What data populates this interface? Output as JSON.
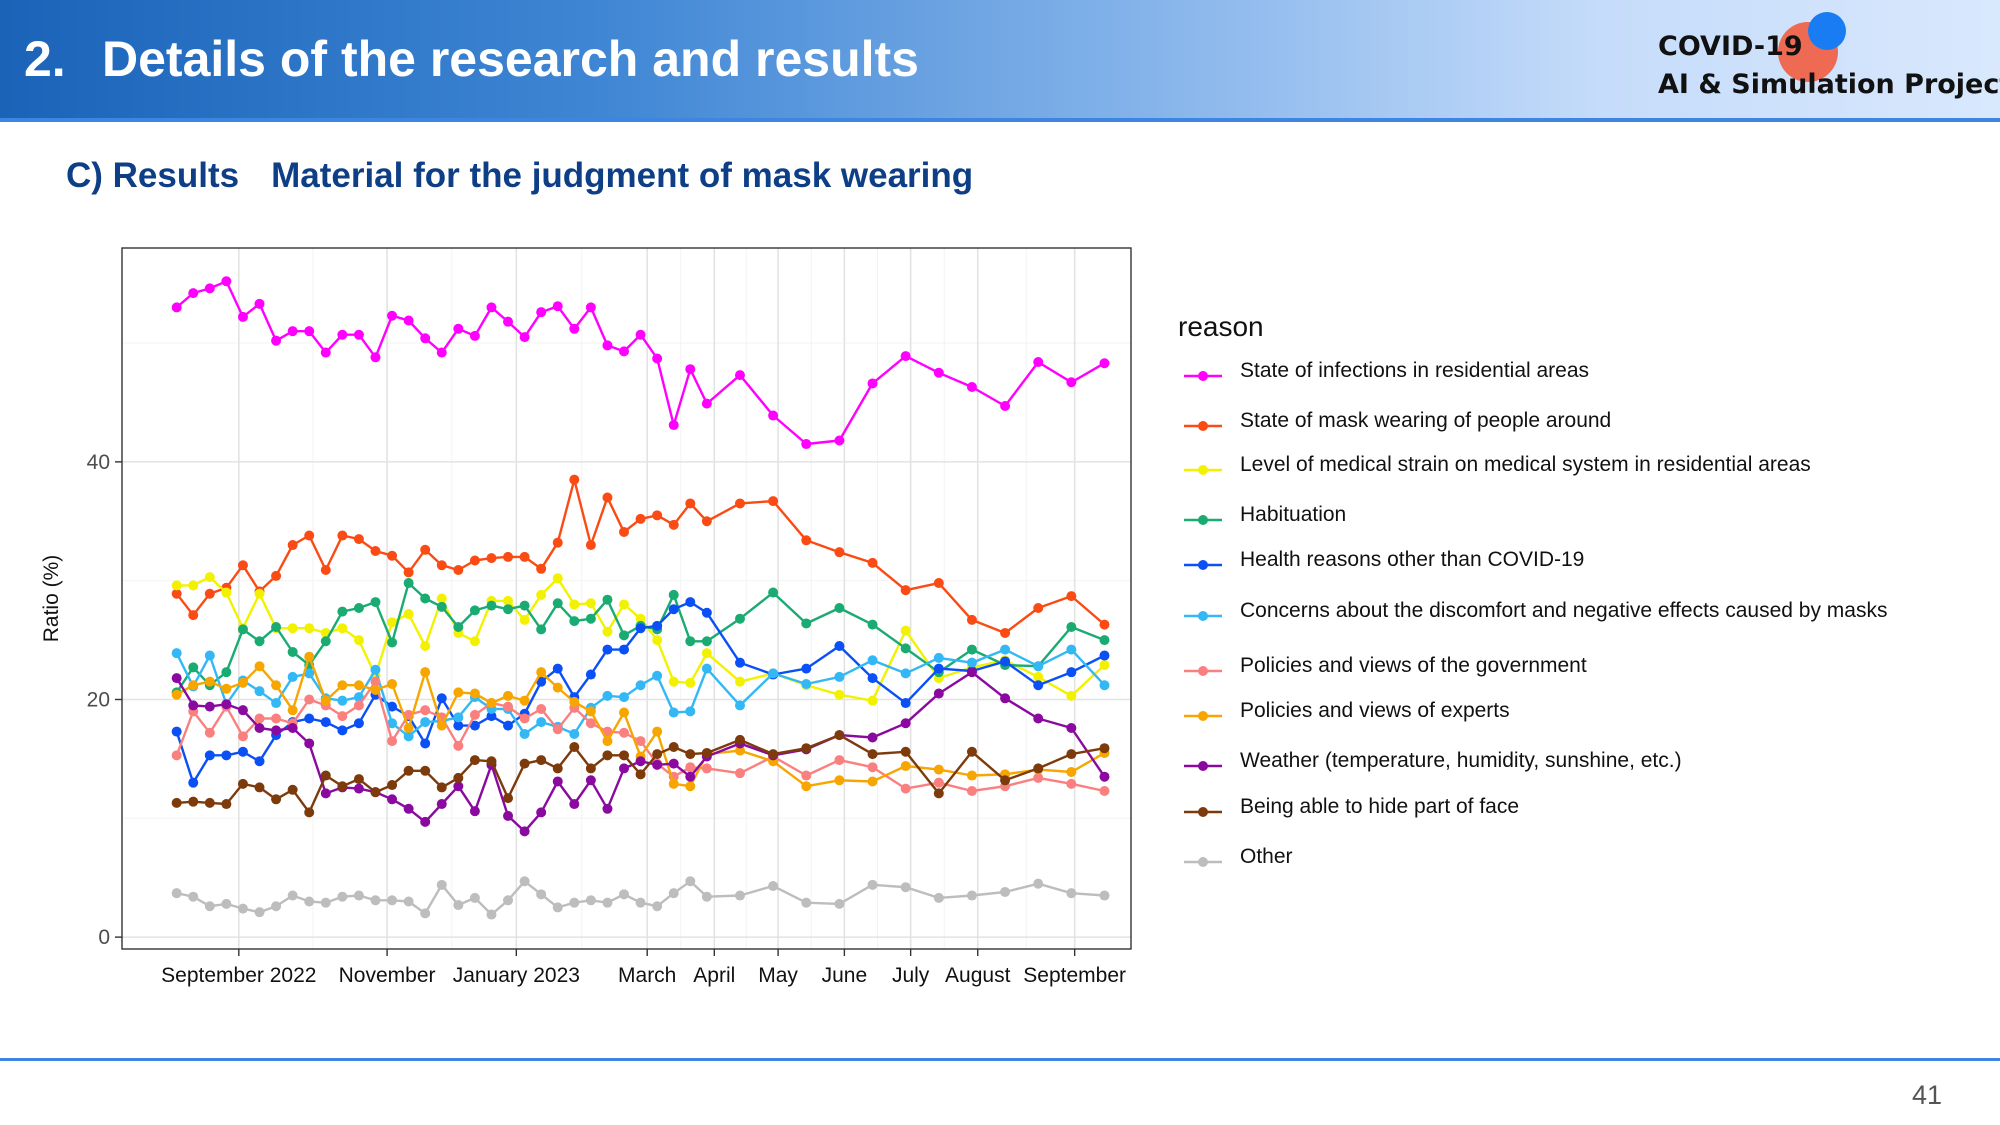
{
  "header": {
    "number": "2.",
    "title": "Details of the research and results",
    "logo_line1": "COVID-19",
    "logo_line2": "AI & Simulation Project"
  },
  "subtitle": {
    "label": "C)  Results",
    "text": "Material for the judgment of mask wearing"
  },
  "page_number": "41",
  "colors": {
    "header_start": "#1a63b8",
    "header_end": "#d9e8fd",
    "accent_rule": "#3d85e0",
    "subtitle": "#0e3f86",
    "logo_red": "#ef6a52",
    "logo_blue": "#1a7cf2"
  },
  "chart_data": {
    "type": "line",
    "ylabel": "Ratio (%)",
    "ylim": [
      -1,
      58
    ],
    "y_ticks": [
      0,
      20,
      40
    ],
    "grid": true,
    "legend_title": "reason",
    "legend_position": "right",
    "x_ticks": [
      {
        "label": "September 2022",
        "x": 3.75
      },
      {
        "label": "November",
        "x": 12.7
      },
      {
        "label": "January 2023",
        "x": 20.5
      },
      {
        "label": "March",
        "x": 28.4
      },
      {
        "label": "April",
        "x": 32.45
      },
      {
        "label": "May",
        "x": 36.3
      },
      {
        "label": "June",
        "x": 40.3
      },
      {
        "label": "July",
        "x": 44.3
      },
      {
        "label": "August",
        "x": 48.35
      },
      {
        "label": "September",
        "x": 54.2
      }
    ],
    "x": [
      0,
      1,
      2,
      3,
      4,
      5,
      6,
      7,
      8,
      9,
      10,
      11,
      12,
      13,
      14,
      15,
      16,
      17,
      18,
      19,
      20,
      21,
      22,
      23,
      24,
      25,
      26,
      27,
      28,
      29,
      30,
      31,
      32,
      34,
      36,
      38,
      40,
      42,
      44,
      46,
      48,
      50,
      52,
      54,
      56
    ],
    "series": [
      {
        "name": "State of infections in residential areas",
        "color": "#ff00ff",
        "values": [
          53.0,
          54.2,
          54.6,
          55.2,
          52.2,
          53.3,
          50.2,
          51.0,
          51.0,
          49.2,
          50.7,
          50.7,
          48.8,
          52.3,
          51.9,
          50.4,
          49.2,
          51.2,
          50.6,
          53.0,
          51.8,
          50.5,
          52.6,
          53.1,
          51.2,
          53.0,
          49.8,
          49.3,
          50.7,
          48.7,
          43.1,
          47.8,
          44.9,
          47.3,
          43.9,
          41.5,
          41.8,
          46.6,
          48.9,
          47.5,
          46.3,
          44.7,
          48.4,
          46.7,
          48.3
        ]
      },
      {
        "name": "State of mask wearing of people around",
        "color": "#fa4b14",
        "values": [
          28.9,
          27.1,
          28.9,
          29.4,
          31.3,
          29.1,
          30.4,
          33.0,
          33.8,
          30.9,
          33.8,
          33.5,
          32.5,
          32.1,
          30.7,
          32.6,
          31.3,
          30.9,
          31.7,
          31.9,
          32.0,
          32.0,
          31.0,
          33.2,
          38.5,
          33.0,
          37.0,
          34.1,
          35.2,
          35.5,
          34.7,
          36.5,
          35.0,
          36.5,
          36.7,
          33.4,
          32.4,
          31.5,
          29.2,
          29.8,
          26.7,
          25.6,
          27.7,
          28.7,
          26.3
        ]
      },
      {
        "name": "Level of medical strain on medical system in residential areas",
        "color": "#f2f200",
        "values": [
          29.6,
          29.6,
          30.3,
          29.0,
          26.0,
          28.9,
          26.0,
          26.0,
          26.0,
          25.6,
          26.0,
          25.0,
          22.0,
          26.5,
          27.2,
          24.5,
          28.5,
          25.6,
          24.9,
          28.3,
          28.3,
          26.7,
          28.8,
          30.2,
          28.0,
          28.1,
          25.7,
          28.0,
          26.8,
          25.0,
          21.5,
          21.4,
          23.9,
          21.5,
          22.2,
          21.2,
          20.4,
          19.9,
          25.8,
          21.8,
          22.7,
          23.3,
          21.9,
          20.3,
          22.9
        ]
      },
      {
        "name": "Habituation",
        "color": "#1aab73",
        "values": [
          20.6,
          22.7,
          21.2,
          22.3,
          25.9,
          24.9,
          26.1,
          24.0,
          22.9,
          24.9,
          27.4,
          27.7,
          28.2,
          24.8,
          29.8,
          28.5,
          27.8,
          26.1,
          27.5,
          27.9,
          27.6,
          27.9,
          25.9,
          28.1,
          26.6,
          26.8,
          28.4,
          25.4,
          26.2,
          25.9,
          28.8,
          24.9,
          24.9,
          26.8,
          29.0,
          26.4,
          27.7,
          26.3,
          24.3,
          22.3,
          24.2,
          22.9,
          22.8,
          26.1,
          25.0
        ]
      },
      {
        "name": "Health reasons other than COVID-19",
        "color": "#0a50f5",
        "values": [
          17.3,
          13.0,
          15.3,
          15.3,
          15.6,
          14.8,
          17.0,
          18.1,
          18.4,
          18.1,
          17.4,
          18.0,
          20.4,
          19.4,
          18.6,
          16.3,
          20.1,
          17.8,
          17.8,
          18.6,
          17.8,
          18.8,
          21.5,
          22.6,
          20.2,
          22.1,
          24.2,
          24.2,
          26.0,
          26.2,
          27.6,
          28.2,
          27.3,
          23.1,
          22.1,
          22.6,
          24.5,
          21.8,
          19.7,
          22.6,
          22.4,
          23.2,
          21.2,
          22.3,
          23.7
        ]
      },
      {
        "name": "Concerns about the discomfort and negative effects caused by masks",
        "color": "#33b8f5",
        "values": [
          23.9,
          21.1,
          23.7,
          19.6,
          21.6,
          20.7,
          19.7,
          21.9,
          22.2,
          20.1,
          19.9,
          20.2,
          22.5,
          18.0,
          16.9,
          18.1,
          18.2,
          18.5,
          20.2,
          19.2,
          19.2,
          17.1,
          18.1,
          17.7,
          17.1,
          19.3,
          20.3,
          20.2,
          21.2,
          22.0,
          18.9,
          19.0,
          22.6,
          19.5,
          22.2,
          21.3,
          21.9,
          23.3,
          22.2,
          23.5,
          23.1,
          24.2,
          22.8,
          24.2,
          21.2
        ]
      },
      {
        "name": "Policies and views of the government",
        "color": "#fa8080",
        "values": [
          15.3,
          19.0,
          17.2,
          19.4,
          16.9,
          18.4,
          18.4,
          18.0,
          20.0,
          19.5,
          18.6,
          19.5,
          21.5,
          16.5,
          18.7,
          19.1,
          18.5,
          16.1,
          18.7,
          19.7,
          19.4,
          18.4,
          19.2,
          17.5,
          19.3,
          18.0,
          17.3,
          17.2,
          16.5,
          14.6,
          13.5,
          14.3,
          14.2,
          13.8,
          15.2,
          13.6,
          14.9,
          14.3,
          12.5,
          13.0,
          12.3,
          12.7,
          13.4,
          12.9,
          12.3
        ]
      },
      {
        "name": "Policies and views of experts",
        "color": "#f7a600",
        "values": [
          20.4,
          21.2,
          21.5,
          20.9,
          21.4,
          22.8,
          21.2,
          19.1,
          23.6,
          19.9,
          21.2,
          21.2,
          20.8,
          21.3,
          17.6,
          22.3,
          17.8,
          20.6,
          20.5,
          19.7,
          20.3,
          19.9,
          22.3,
          21.0,
          19.8,
          19.0,
          16.5,
          18.9,
          15.2,
          17.3,
          12.9,
          12.7,
          15.4,
          15.7,
          14.8,
          12.7,
          13.2,
          13.1,
          14.4,
          14.1,
          13.6,
          13.7,
          14.1,
          13.9,
          15.5
        ]
      },
      {
        "name": "Weather (temperature, humidity, sunshine, etc.)",
        "color": "#8a0aa0",
        "values": [
          21.8,
          19.5,
          19.4,
          19.6,
          19.1,
          17.6,
          17.4,
          17.6,
          16.3,
          12.1,
          12.6,
          12.5,
          12.2,
          11.6,
          10.8,
          9.7,
          11.2,
          12.7,
          10.6,
          14.5,
          10.2,
          8.9,
          10.5,
          13.1,
          11.2,
          13.2,
          10.8,
          14.2,
          14.8,
          14.5,
          14.6,
          13.5,
          15.2,
          16.3,
          15.3,
          15.8,
          17.0,
          16.8,
          18.0,
          20.5,
          22.3,
          20.1,
          18.4,
          17.6,
          13.5
        ]
      },
      {
        "name": "Being able to hide part of face",
        "color": "#7d3a0a",
        "values": [
          11.3,
          11.4,
          11.3,
          11.2,
          12.9,
          12.6,
          11.6,
          12.4,
          10.5,
          13.6,
          12.7,
          13.3,
          12.2,
          12.8,
          14.0,
          14.0,
          12.6,
          13.4,
          14.9,
          14.8,
          11.7,
          14.6,
          14.9,
          14.2,
          16.0,
          14.2,
          15.3,
          15.3,
          13.7,
          15.4,
          16.0,
          15.4,
          15.5,
          16.6,
          15.4,
          15.9,
          17.0,
          15.4,
          15.6,
          12.1,
          15.6,
          13.2,
          14.2,
          15.4,
          15.9
        ]
      },
      {
        "name": "Other",
        "color": "#bdbdbd",
        "values": [
          3.7,
          3.4,
          2.6,
          2.8,
          2.4,
          2.1,
          2.6,
          3.5,
          3.0,
          2.9,
          3.4,
          3.5,
          3.1,
          3.1,
          3.0,
          2.0,
          4.4,
          2.7,
          3.3,
          1.9,
          3.1,
          4.7,
          3.6,
          2.5,
          2.9,
          3.1,
          2.9,
          3.6,
          2.9,
          2.6,
          3.7,
          4.7,
          3.4,
          3.5,
          4.3,
          2.9,
          2.8,
          4.4,
          4.2,
          3.3,
          3.5,
          3.8,
          4.5,
          3.7,
          3.5
        ]
      }
    ]
  }
}
